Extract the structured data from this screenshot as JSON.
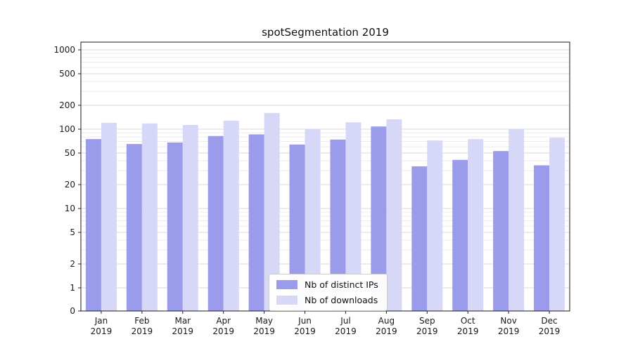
{
  "chart_data": {
    "type": "bar",
    "title": "spotSegmentation 2019",
    "categories": [
      "Jan 2019",
      "Feb 2019",
      "Mar 2019",
      "Apr 2019",
      "May 2019",
      "Jun 2019",
      "Jul 2019",
      "Aug 2019",
      "Sep 2019",
      "Oct 2019",
      "Nov 2019",
      "Dec 2019"
    ],
    "series": [
      {
        "name": "Nb of distinct IPs",
        "color": "#9b9bec",
        "values": [
          75,
          65,
          68,
          82,
          86,
          64,
          74,
          108,
          34,
          41,
          53,
          35
        ]
      },
      {
        "name": "Nb of downloads",
        "color": "#d7d7f8",
        "values": [
          120,
          118,
          113,
          128,
          160,
          101,
          122,
          133,
          72,
          75,
          100,
          78
        ]
      }
    ],
    "xlabel": "",
    "ylabel": "",
    "yscale": "symlog",
    "yticks": [
      0,
      1,
      2,
      5,
      10,
      20,
      50,
      100,
      200,
      500,
      1000
    ],
    "ylim": [
      0,
      1000
    ],
    "grid": "horizontal-log-minor",
    "legend_position": "bottom-center-inside"
  }
}
